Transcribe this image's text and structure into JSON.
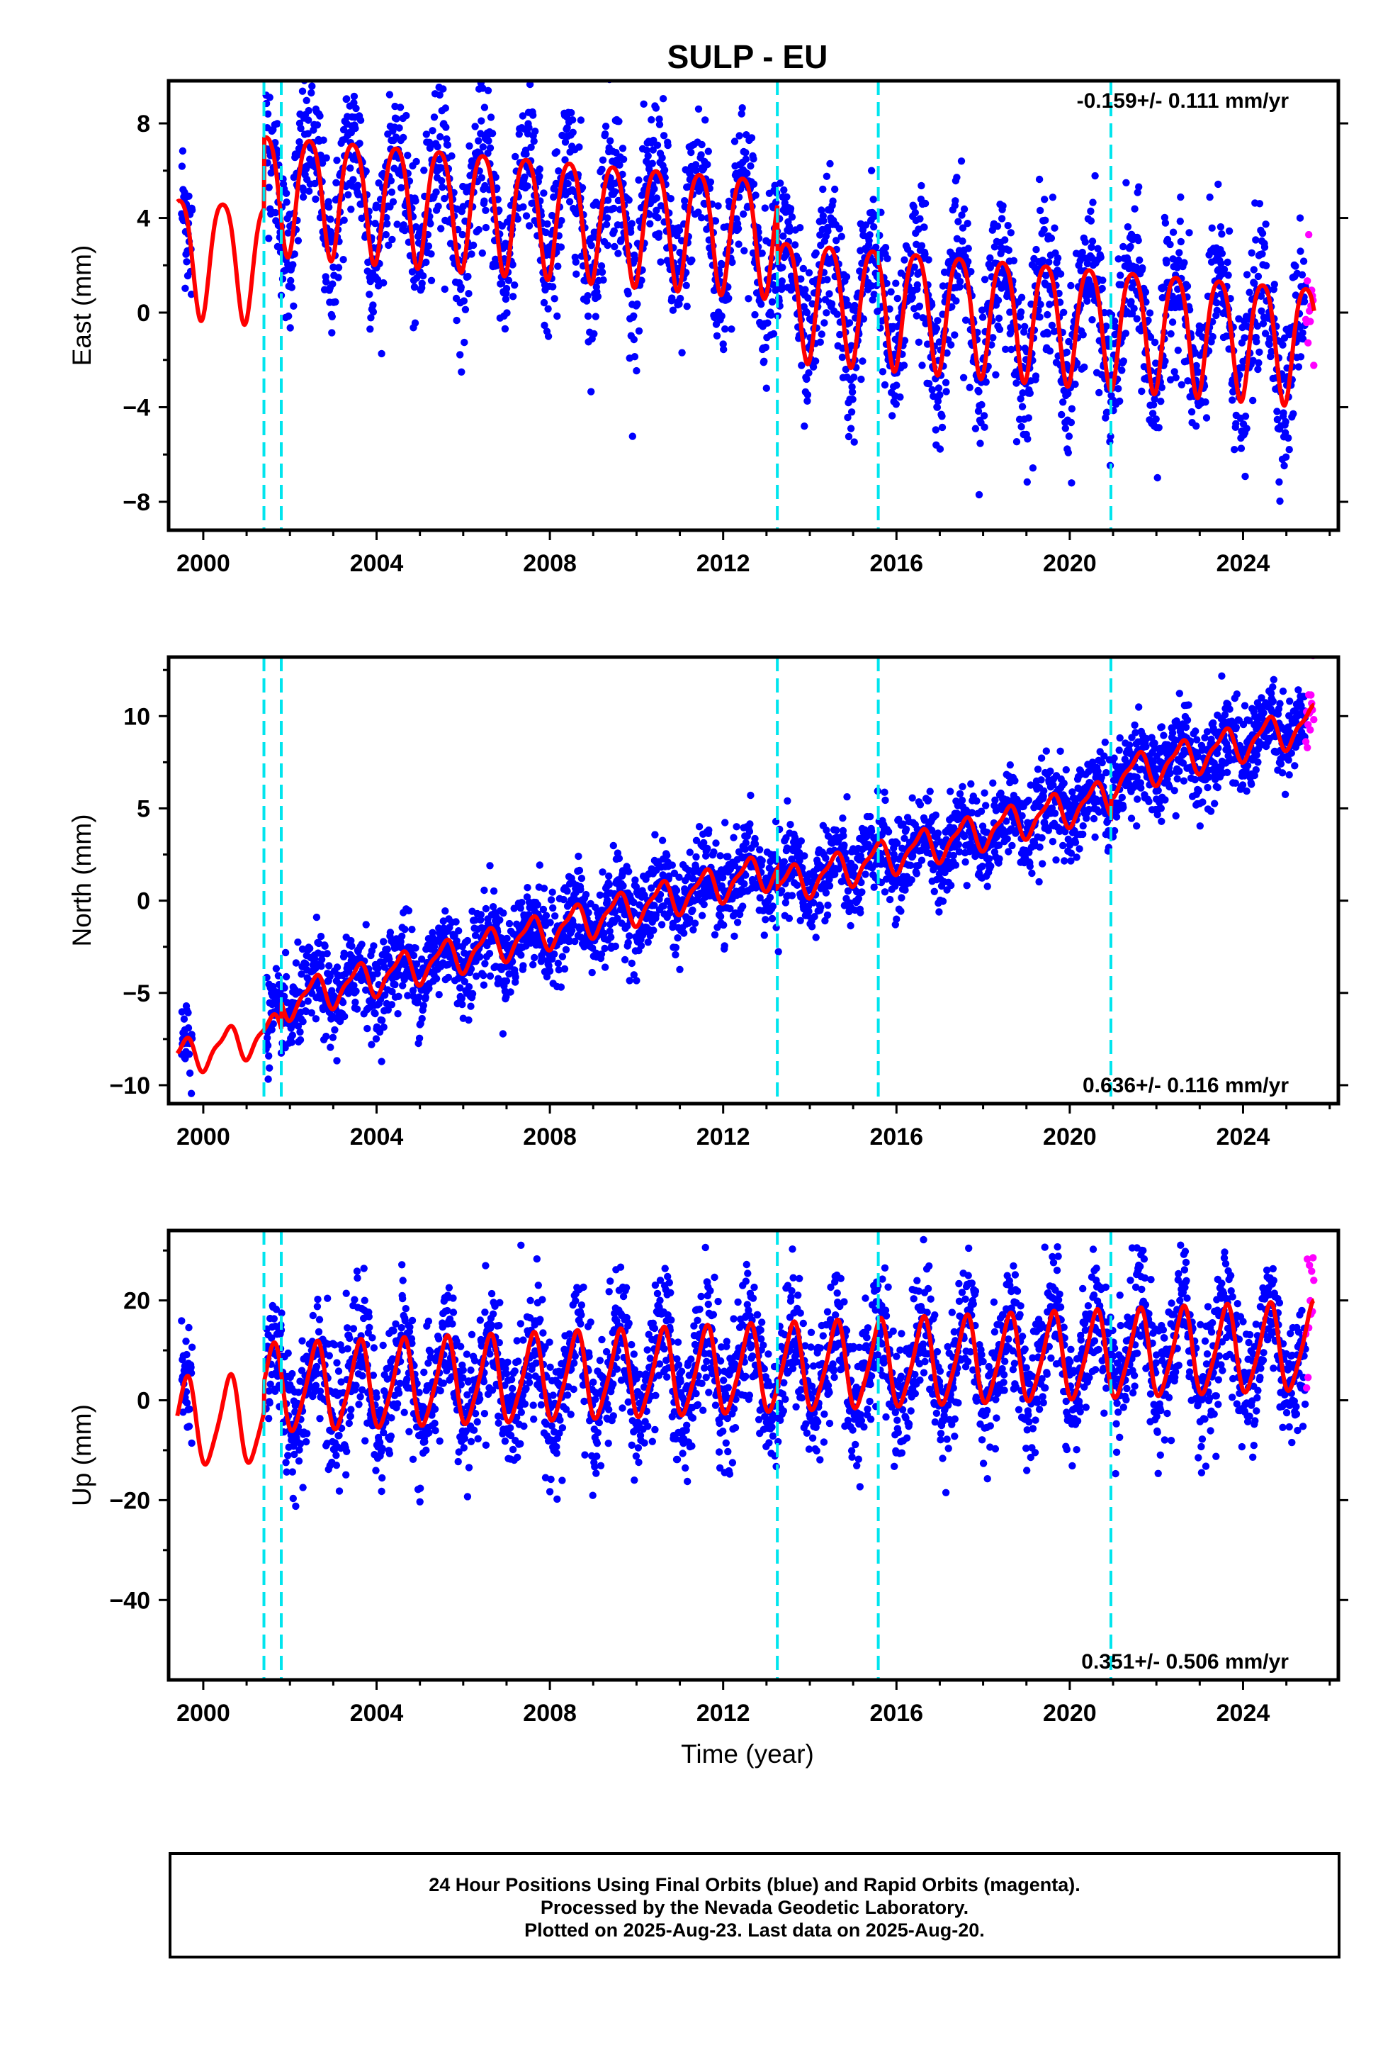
{
  "title": "SULP - EU",
  "xlabel": "Time (year)",
  "footer": {
    "line1": "24 Hour Positions Using Final Orbits (blue) and Rapid Orbits (magenta).",
    "line2": "Processed by the Nevada Geodetic Laboratory.",
    "line3": "Plotted on 2025-Aug-23. Last data on 2025-Aug-20."
  },
  "colors": {
    "final_orbits": "#0000ff",
    "rapid_orbits": "#ff00ff",
    "model": "#ff0000",
    "equipment_change": "#00e5ee",
    "axis": "#000000"
  },
  "chart_data": [
    {
      "type": "scatter",
      "component": "east",
      "ylabel": "East (mm)",
      "rate_label": "-0.159+/- 0.111 mm/yr",
      "xlim": [
        1999.2,
        2026.2
      ],
      "ylim": [
        -9.2,
        9.8
      ],
      "xticks": [
        2000,
        2004,
        2008,
        2012,
        2016,
        2020,
        2024
      ],
      "yticks": [
        -8,
        -4,
        0,
        4,
        8
      ],
      "data_start": 1999.5,
      "gap": [
        1999.75,
        2001.45
      ],
      "rapid_start": 2025.45,
      "data_end": 2025.64,
      "breaks": [
        2001.4,
        2001.8,
        2013.25,
        2015.58,
        2020.95
      ],
      "model": {
        "annual_amplitude": 2.5,
        "annual_phase_peak": 0.45,
        "semiannual_amplitude": 0.4,
        "rate": -0.159,
        "offsets": [
          {
            "year": 2001.4,
            "value": 3.0
          },
          {
            "year": 2013.25,
            "value": -2.6
          }
        ],
        "reference_value": 2.3,
        "reference_year": 2001.5,
        "scatter_sigma": 1.6
      },
      "series": [
        {
          "name": "Final Orbits (blue)"
        },
        {
          "name": "Rapid Orbits (magenta)"
        }
      ]
    },
    {
      "type": "scatter",
      "component": "north",
      "ylabel": "North (mm)",
      "rate_label": "0.636+/- 0.116 mm/yr",
      "xlim": [
        1999.2,
        2026.2
      ],
      "ylim": [
        -11.0,
        13.2
      ],
      "xticks": [
        2000,
        2004,
        2008,
        2012,
        2016,
        2020,
        2024
      ],
      "yticks": [
        -10,
        -5,
        0,
        5,
        10
      ],
      "data_start": 1999.5,
      "gap": [
        1999.75,
        2001.45
      ],
      "rapid_start": 2025.45,
      "data_end": 2025.64,
      "breaks": [
        2001.4,
        2001.8,
        2013.25,
        2015.58,
        2020.95
      ],
      "model": {
        "annual_amplitude": 0.9,
        "annual_phase_peak": 0.55,
        "semiannual_amplitude": 0.3,
        "rate": 0.636,
        "offsets": [
          {
            "year": 2001.8,
            "value": 1.5
          },
          {
            "year": 2013.25,
            "value": -1.0
          },
          {
            "year": 2020.95,
            "value": 1.0
          }
        ],
        "reference_value": -8.5,
        "reference_year": 1999.5,
        "scatter_sigma": 1.2
      },
      "series": [
        {
          "name": "Final Orbits (blue)"
        },
        {
          "name": "Rapid Orbits (magenta)"
        }
      ]
    },
    {
      "type": "scatter",
      "component": "up",
      "ylabel": "Up (mm)",
      "rate_label": "0.351+/- 0.506 mm/yr",
      "xlim": [
        1999.2,
        2026.2
      ],
      "ylim": [
        -56,
        34
      ],
      "xticks": [
        2000,
        2004,
        2008,
        2012,
        2016,
        2020,
        2024
      ],
      "yticks": [
        -40,
        -20,
        0,
        20
      ],
      "data_start": 1999.5,
      "gap": [
        1999.75,
        2001.45
      ],
      "rapid_start": 2025.45,
      "data_end": 2025.64,
      "breaks": [
        2001.4,
        2001.8,
        2013.25,
        2015.58,
        2020.95
      ],
      "model": {
        "annual_amplitude": 8.5,
        "annual_phase_peak": 0.6,
        "semiannual_amplitude": 1.5,
        "rate": 0.351,
        "offsets": [
          {
            "year": 2001.4,
            "value": 6.0
          }
        ],
        "reference_value": -4.5,
        "reference_year": 1999.5,
        "scatter_sigma": 6.5
      },
      "series": [
        {
          "name": "Final Orbits (blue)"
        },
        {
          "name": "Rapid Orbits (magenta)"
        }
      ]
    }
  ]
}
